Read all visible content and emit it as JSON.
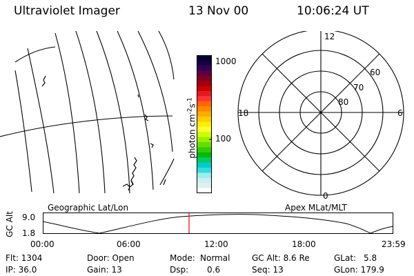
{
  "header": {
    "instrument": "Ultraviolet Imager",
    "date": "13 Nov 00",
    "time": "10:06:24 UT"
  },
  "colorbar": {
    "unit_label": "photon cm",
    "unit_exp1": "-2",
    "unit_s": "s",
    "unit_exp2": "-1",
    "tick_1000": "1000",
    "tick_100": "100",
    "colors": [
      "#000033",
      "#1a0040",
      "#330055",
      "#5a0040",
      "#800020",
      "#a00010",
      "#cc0000",
      "#e61a1a",
      "#ff3333",
      "#ff6600",
      "#ff8800",
      "#ffaa00",
      "#ffcc00",
      "#ffee00",
      "#ffff33",
      "#ccff00",
      "#99ee00",
      "#66dd00",
      "#33cc00",
      "#00bb00",
      "#00cc66",
      "#00cccc",
      "#33dddd",
      "#99eeee",
      "#cceeee",
      "#e0f0f0",
      "#ffffff"
    ]
  },
  "polar": {
    "mlt_12": "12",
    "mlt_18": "18",
    "mlt_6": "6",
    "mlt_0": "0",
    "lat_60": "60",
    "lat_70": "70",
    "lat_80": "80"
  },
  "panel_labels": {
    "left": "Geographic Lat/Lon",
    "right": "Apex MLat/MLT"
  },
  "altitude_plot": {
    "ylabel": "GC Alt",
    "y_top": "9.0",
    "y_bottom": "1.8",
    "x_ticks": [
      "00:00",
      "06:00",
      "12:00",
      "18:00",
      "23:59"
    ],
    "marker_color": "#ff0000"
  },
  "info": {
    "flt": "Flt: 1304",
    "ip": "IP: 36.0",
    "door": "Door: Open",
    "gain": "Gain: 13",
    "mode_label": "Mode:",
    "mode_value": "Normal",
    "dsp_label": "Dsp:",
    "dsp_value": "0.6",
    "gcalt": "GC Alt: 8.6 Re",
    "seq": "Seq: 13",
    "glat_label": "GLat:",
    "glat_value": "5.8",
    "glon": "GLon: 179.9"
  }
}
